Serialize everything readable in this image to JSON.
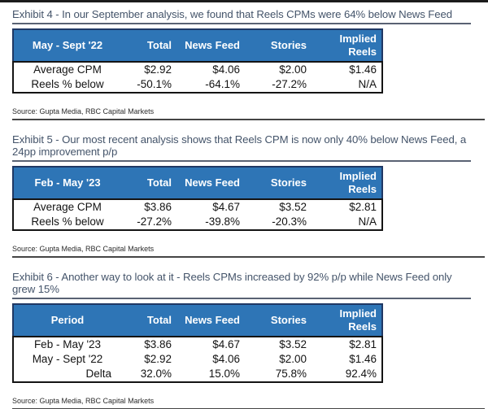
{
  "page": {
    "colors": {
      "header_blue": "#2E75B6",
      "header_border_navy": "#1F3864",
      "title_slate": "#44546A",
      "body_text": "#131313"
    }
  },
  "exhibits": [
    {
      "title": "Exhibit 4 - In our September analysis, we found that Reels CPMs were 64% below News Feed",
      "source": "Source: Gupta Media, RBC Capital Markets",
      "table": {
        "columns": [
          "May - Sept '22",
          "Total",
          "News Feed",
          "Stories",
          "Implied Reels"
        ],
        "rows": [
          [
            "Average CPM",
            "$2.92",
            "$4.06",
            "$2.00",
            "$1.46"
          ],
          [
            "Reels % below",
            "-50.1%",
            "-64.1%",
            "-27.2%",
            "N/A"
          ]
        ]
      }
    },
    {
      "title": "Exhibit 5 - Our most recent analysis shows that Reels CPM is now only 40% below News Feed, a 24pp improvement p/p",
      "source": "Source: Gupta Media, RBC Capital Markets",
      "table": {
        "columns": [
          "Feb - May '23",
          "Total",
          "News Feed",
          "Stories",
          "Implied Reels"
        ],
        "rows": [
          [
            "Average CPM",
            "$3.86",
            "$4.67",
            "$3.52",
            "$2.81"
          ],
          [
            "Reels % below",
            "-27.2%",
            "-39.8%",
            "-20.3%",
            "N/A"
          ]
        ]
      }
    },
    {
      "title": "Exhibit 6 - Another way to look at it - Reels CPMs increased by 92% p/p while News Feed only grew 15%",
      "source": "Source: Gupta Media, RBC Capital Markets",
      "table": {
        "columns": [
          "Period",
          "Total",
          "News Feed",
          "Stories",
          "Implied Reels"
        ],
        "rows": [
          [
            "Feb - May '23",
            "$3.86",
            "$4.67",
            "$3.52",
            "$2.81"
          ],
          [
            "May - Sept '22",
            "$2.92",
            "$4.06",
            "$2.00",
            "$1.46"
          ],
          [
            "Delta",
            "32.0%",
            "15.0%",
            "75.8%",
            "92.4%"
          ]
        ]
      }
    }
  ]
}
